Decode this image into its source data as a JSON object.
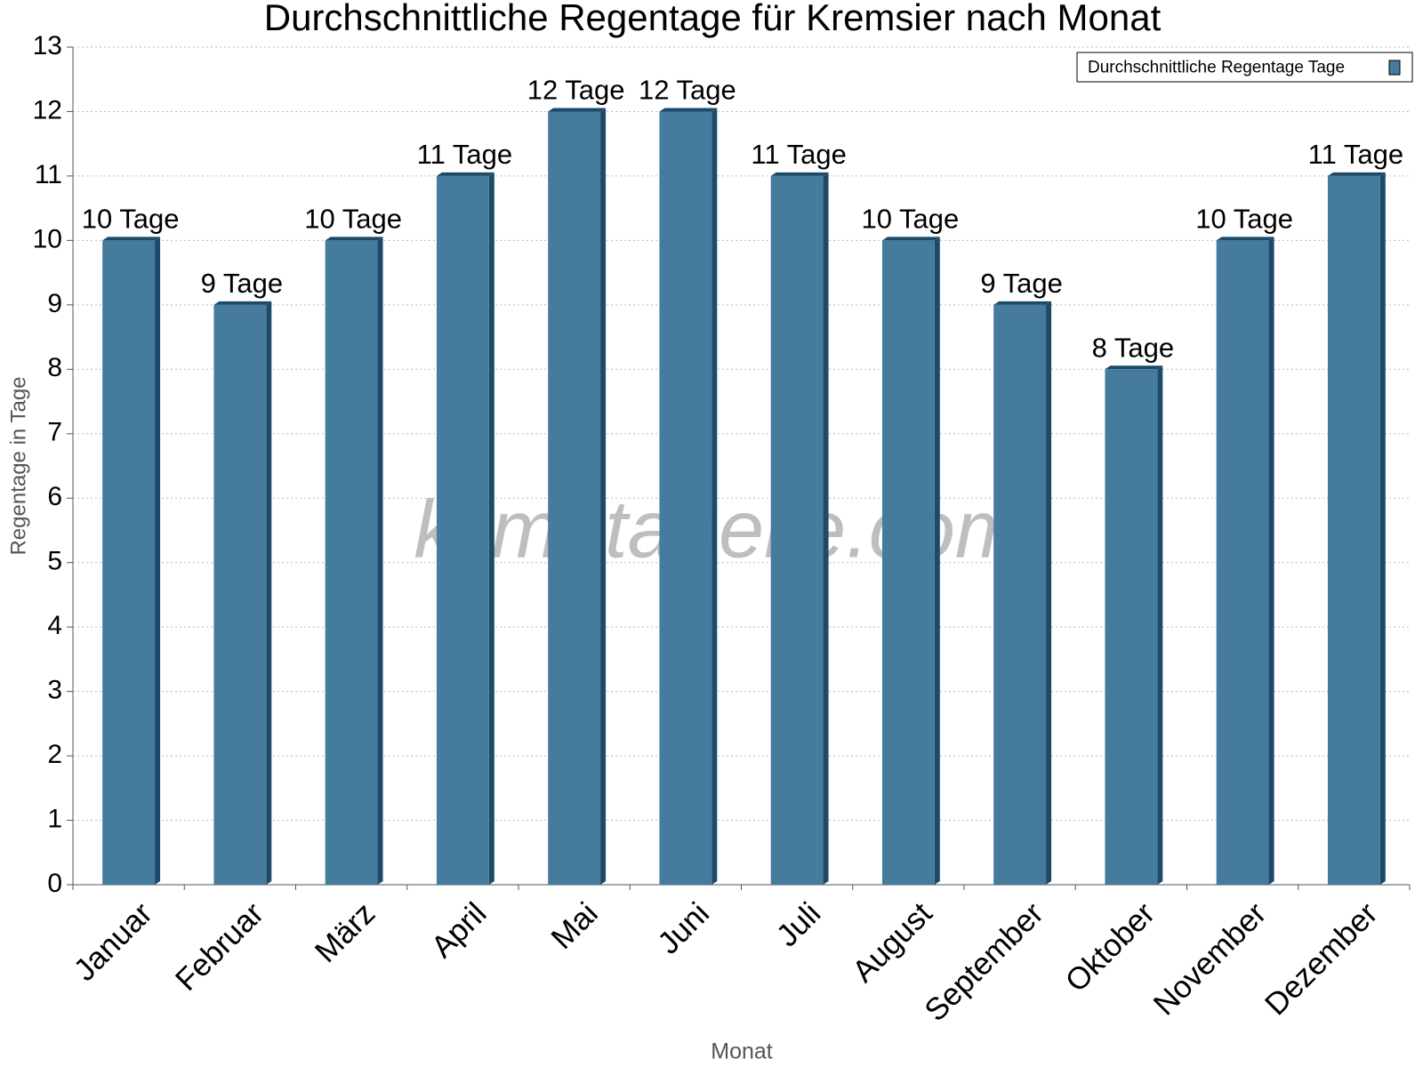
{
  "chart_data": {
    "type": "bar",
    "title": "Durchschnittliche Regentage für Kremsier nach Monat",
    "x_label": "Monat",
    "y_label": "Regentage in Tage",
    "watermark": "klimatabelle.com",
    "categories": [
      "Januar",
      "Februar",
      "März",
      "April",
      "Mai",
      "Juni",
      "Juli",
      "August",
      "September",
      "Oktober",
      "November",
      "Dezember"
    ],
    "series": [
      {
        "name": "Durchschnittliche Regentage Tage",
        "color": "#457b9d",
        "values": [
          10,
          9,
          10,
          11,
          12,
          12,
          11,
          10,
          9,
          8,
          10,
          11
        ],
        "value_labels": [
          "10 Tage",
          "9 Tage",
          "10 Tage",
          "11 Tage",
          "12 Tage",
          "12 Tage",
          "11 Tage",
          "10 Tage",
          "9 Tage",
          "8 Tage",
          "10 Tage",
          "11 Tage"
        ]
      }
    ],
    "ylim": [
      0,
      13
    ],
    "yticks": [
      0,
      1,
      2,
      3,
      4,
      5,
      6,
      7,
      8,
      9,
      10,
      11,
      12,
      13
    ],
    "grid": true,
    "legend": "top-right"
  }
}
